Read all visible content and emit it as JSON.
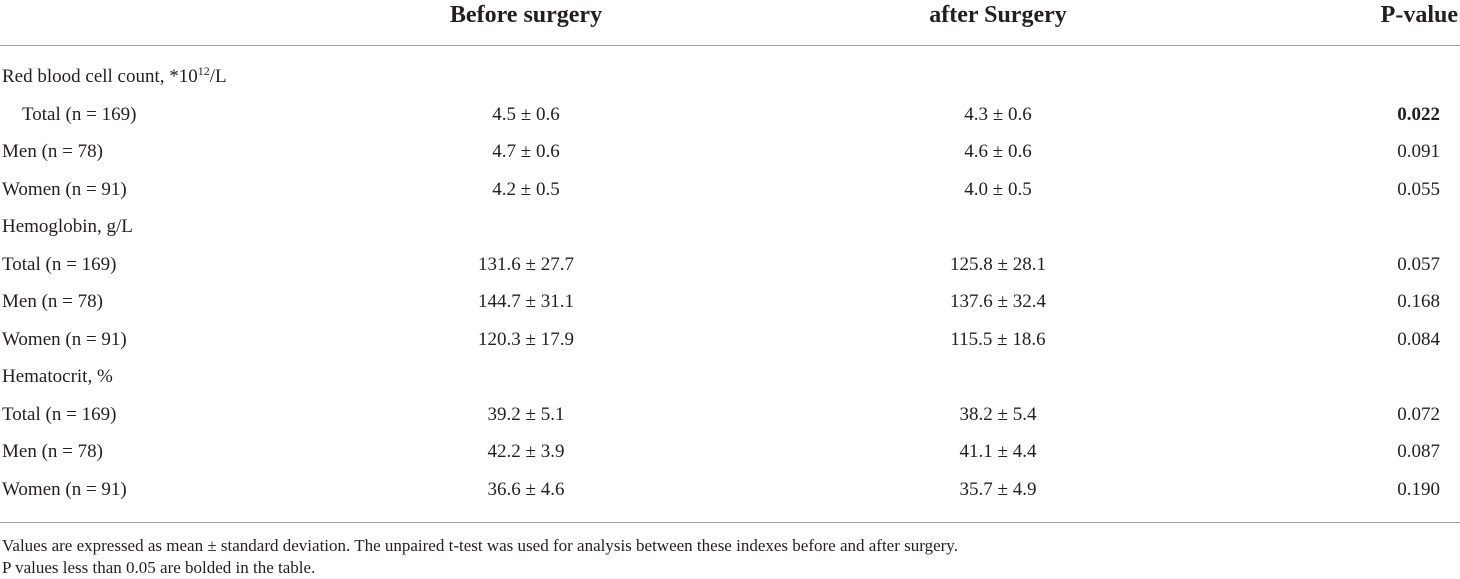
{
  "header": {
    "before": "Before surgery",
    "after": "after Surgery",
    "pvalue": "P-value"
  },
  "rows": [
    {
      "label": "Red blood cell count, *10",
      "label_sup": "12",
      "label_suffix": "/L",
      "before": "",
      "after": "",
      "p": "",
      "section": true
    },
    {
      "label": "Total (n = 169)",
      "before": "4.5 ± 0.6",
      "after": "4.3 ± 0.6",
      "p": "0.022",
      "p_bold": true,
      "indent": true
    },
    {
      "label": "Men (n = 78)",
      "before": "4.7 ± 0.6",
      "after": "4.6 ± 0.6",
      "p": "0.091"
    },
    {
      "label": "Women (n = 91)",
      "before": "4.2 ± 0.5",
      "after": "4.0 ± 0.5",
      "p": "0.055"
    },
    {
      "label": "Hemoglobin, g/L",
      "before": "",
      "after": "",
      "p": "",
      "section": true
    },
    {
      "label": "Total (n = 169)",
      "before": "131.6 ± 27.7",
      "after": "125.8 ± 28.1",
      "p": "0.057"
    },
    {
      "label": "Men (n = 78)",
      "before": "144.7 ± 31.1",
      "after": "137.6 ± 32.4",
      "p": "0.168"
    },
    {
      "label": "Women (n = 91)",
      "before": "120.3 ± 17.9",
      "after": "115.5 ± 18.6",
      "p": "0.084"
    },
    {
      "label": "Hematocrit, %",
      "before": "",
      "after": "",
      "p": "",
      "section": true
    },
    {
      "label": "Total (n = 169)",
      "before": "39.2 ± 5.1",
      "after": "38.2 ± 5.4",
      "p": "0.072"
    },
    {
      "label": "Men (n = 78)",
      "before": "42.2 ± 3.9",
      "after": "41.1 ± 4.4",
      "p": "0.087"
    },
    {
      "label": "Women (n = 91)",
      "before": "36.6 ± 4.6",
      "after": "35.7 ± 4.9",
      "p": "0.190"
    }
  ],
  "notes": [
    "Values are expressed as mean ± standard deviation. The unpaired t-test was used for analysis between these indexes before and after surgery.",
    "P values less than 0.05 are bolded in the table."
  ]
}
